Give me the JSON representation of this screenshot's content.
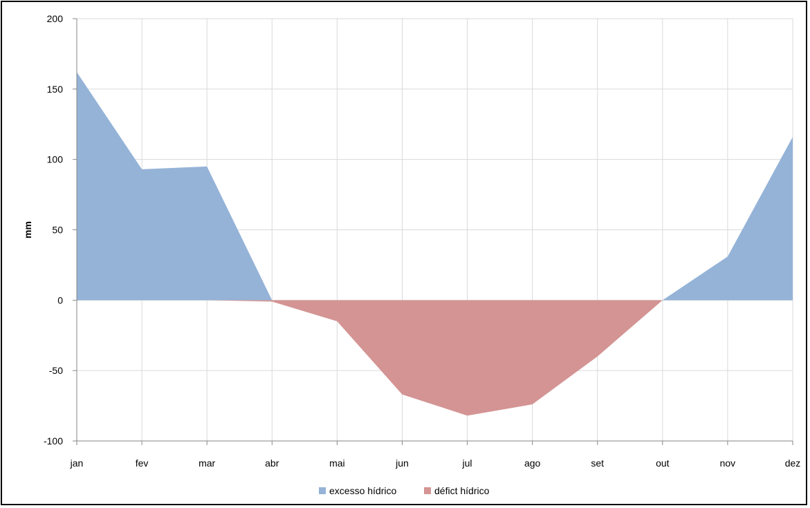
{
  "chart_data": {
    "type": "area",
    "categories": [
      "jan",
      "fev",
      "mar",
      "abr",
      "mai",
      "jun",
      "jul",
      "ago",
      "set",
      "out",
      "nov",
      "dez"
    ],
    "series": [
      {
        "name": "excesso hídrico",
        "values": [
          162,
          93,
          95,
          0,
          0,
          0,
          0,
          0,
          0,
          0,
          31,
          116
        ],
        "color": "#95B3D7"
      },
      {
        "name": "défict hídrico",
        "values": [
          0,
          0,
          0,
          -1,
          -15,
          -67,
          -82,
          -74,
          -40,
          0,
          0,
          0
        ],
        "color": "#D49494"
      }
    ],
    "ylabel": "mm",
    "xlabel": "",
    "ylim": [
      -100,
      200
    ],
    "yticks": [
      200,
      150,
      100,
      50,
      0,
      -50,
      -100
    ],
    "grid": true,
    "legend_position": "bottom"
  }
}
